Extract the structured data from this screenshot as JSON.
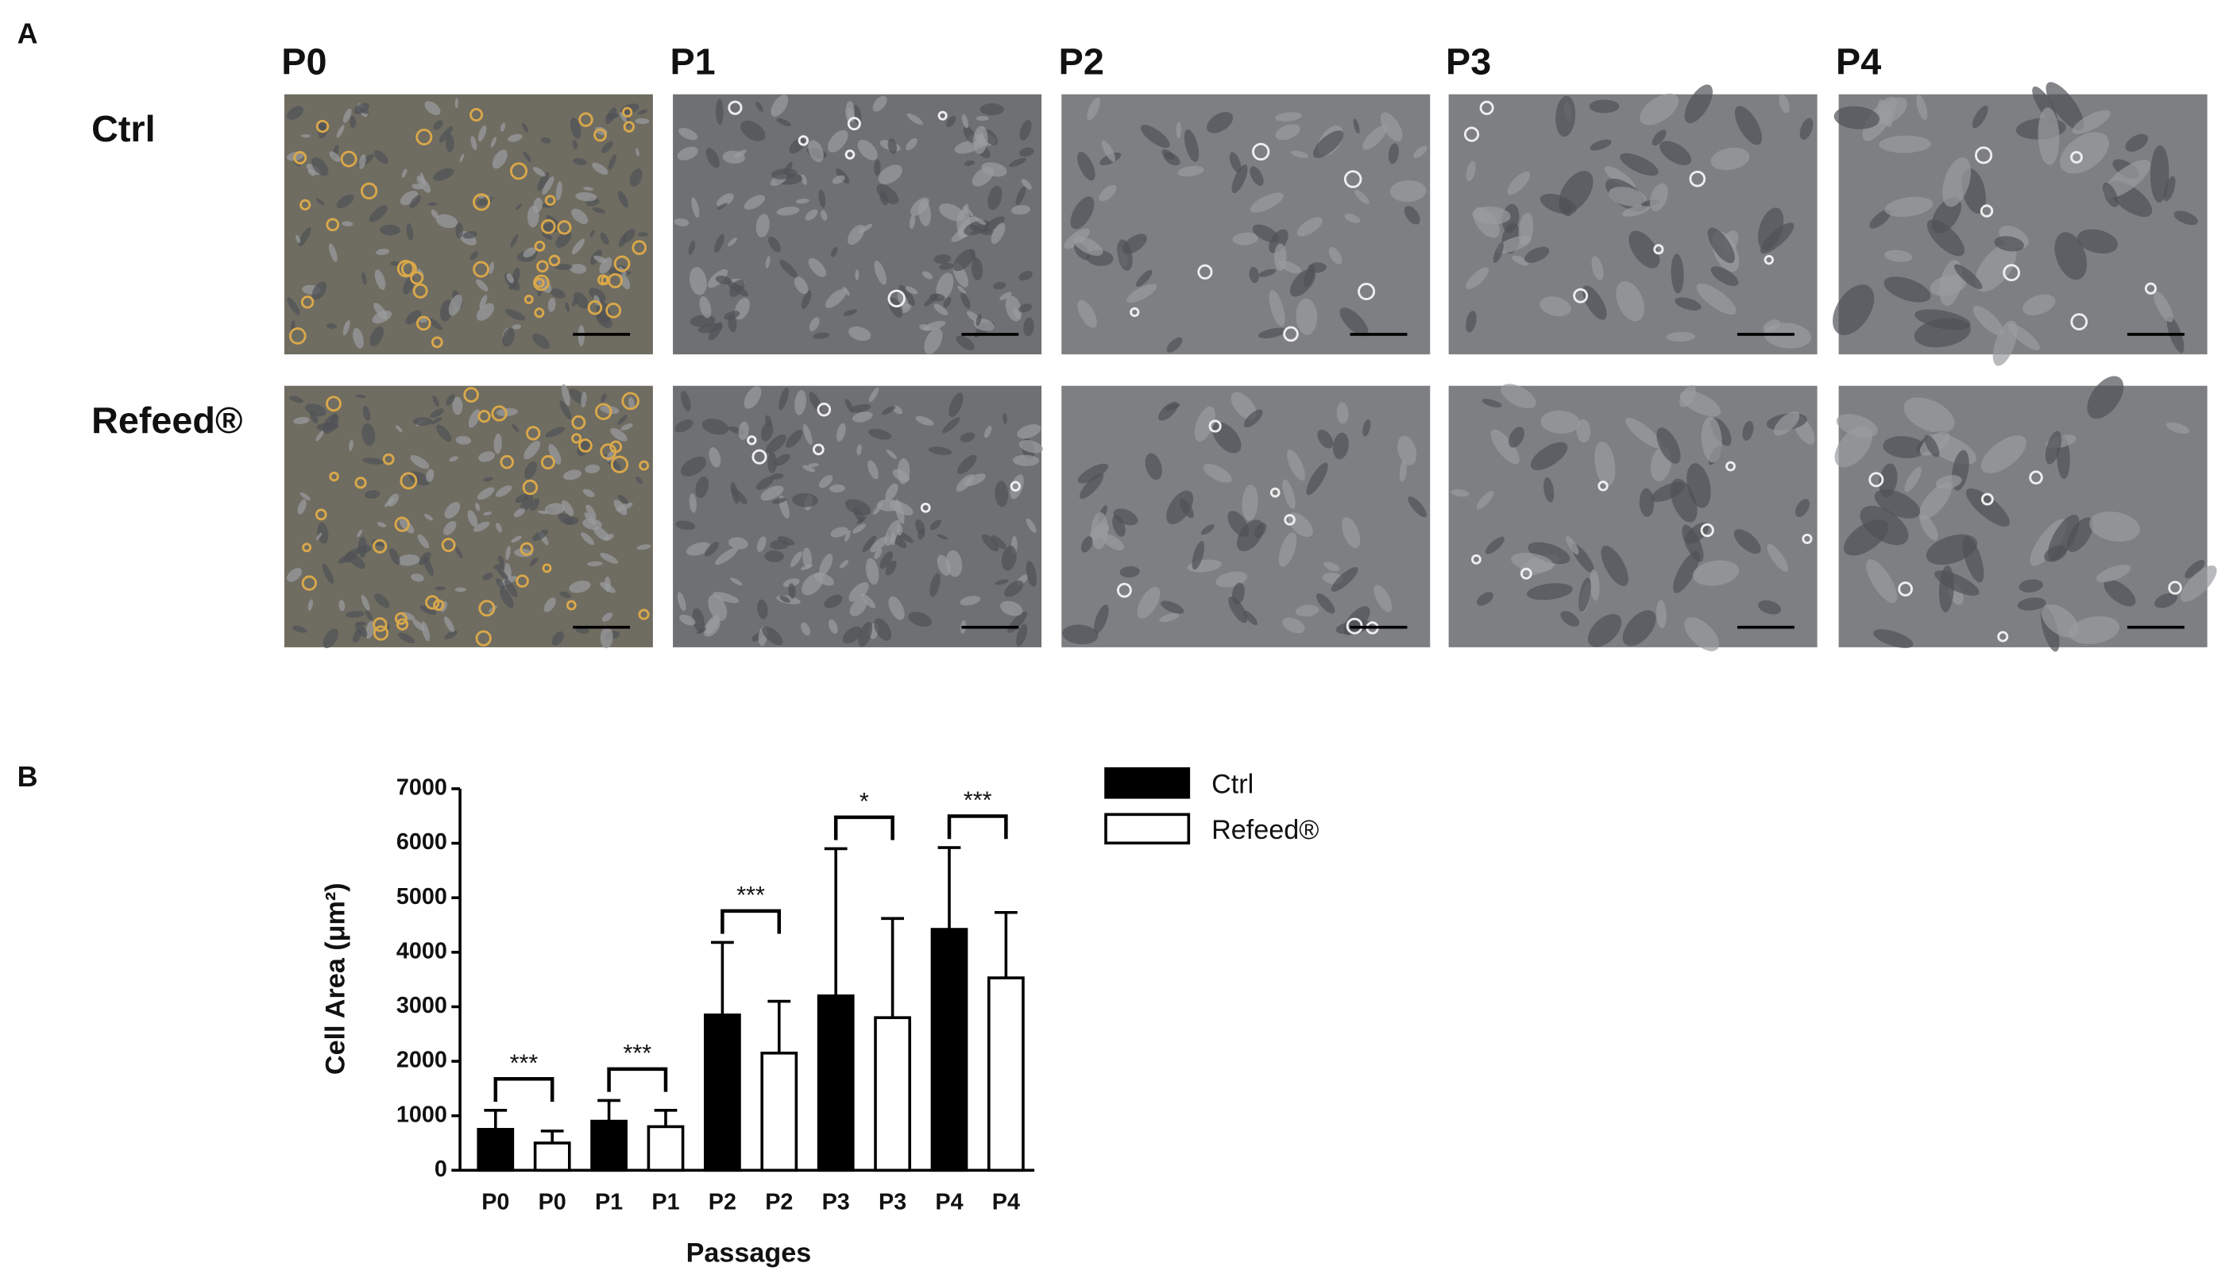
{
  "panel_a": {
    "label": "A",
    "columns": [
      "P0",
      "P1",
      "P2",
      "P3",
      "P4"
    ],
    "rows": [
      "Ctrl",
      "Refeed®"
    ]
  },
  "panel_b_label": "B",
  "chart_data": {
    "type": "bar",
    "categories": [
      "P0",
      "P0",
      "P1",
      "P1",
      "P2",
      "P2",
      "P3",
      "P3",
      "P4",
      "P4"
    ],
    "series": [
      {
        "name": "Ctrl",
        "color": "#000000",
        "values": [
          750,
          null,
          900,
          null,
          2850,
          null,
          3200,
          null,
          4420,
          null
        ],
        "errors": [
          350,
          null,
          380,
          null,
          1330,
          null,
          2700,
          null,
          1500,
          null
        ]
      },
      {
        "name": "Refeed®",
        "color": "#ffffff",
        "values": [
          null,
          500,
          null,
          800,
          null,
          2150,
          null,
          2800,
          null,
          3530
        ],
        "errors": [
          null,
          220,
          null,
          300,
          null,
          950,
          null,
          1820,
          null,
          1200
        ]
      }
    ],
    "annotations": [
      "***",
      "***",
      "***",
      "*",
      "***"
    ],
    "xlabel": "Passages",
    "ylabel": "Cell Area (μm²)",
    "ylim": [
      0,
      7000
    ],
    "yticks": [
      0,
      1000,
      2000,
      3000,
      4000,
      5000,
      6000,
      7000
    ],
    "grid": false,
    "legend": "right"
  }
}
